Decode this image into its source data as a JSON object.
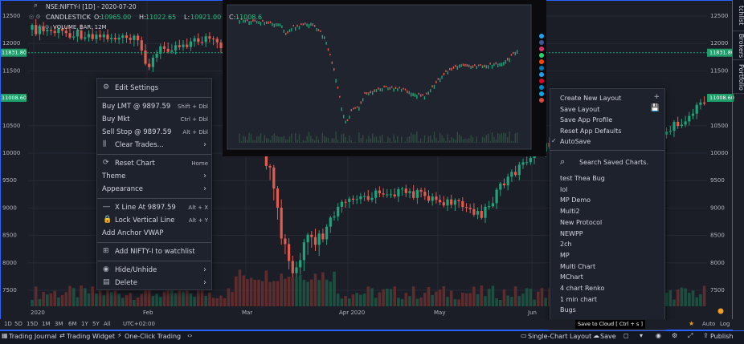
{
  "header": {
    "symbol": "NSE:NIFTY-I [1D] - 2020-07-20",
    "series_label": "CANDLESTICK",
    "ohlc": [
      {
        "label": "O:",
        "value": "10965.00"
      },
      {
        "label": "H:",
        "value": "11022.65"
      },
      {
        "label": "L:",
        "value": "10921.00"
      },
      {
        "label": "C:",
        "value": "11008.6"
      }
    ],
    "volume": "VOLUME_BAR: 12M"
  },
  "price_axis": [
    "12500",
    "12000",
    "11500",
    "10500",
    "10000",
    "9500",
    "9000",
    "8500",
    "8000",
    "7500"
  ],
  "price_badges": [
    "11831.80",
    "11008.60"
  ],
  "time_axis": [
    "2020",
    "Feb",
    "Mar",
    "Apr 2020",
    "May",
    "Jun"
  ],
  "timeframes": [
    "1D",
    "5D",
    "15D",
    "1M",
    "3M",
    "6M",
    "1Y",
    "5Y",
    "All"
  ],
  "timezone": "UTC+02:00",
  "scale_options": [
    "Auto",
    "Log"
  ],
  "toolbar_left": [
    "Trading Journal",
    "Trading Widget",
    "One-Click Trading"
  ],
  "toolbar_right": [
    "Single-Chart Layout",
    "Save",
    "Publish"
  ],
  "tooltip": "Save to Cloud [ Ctrl + s ]",
  "side_tabs": [
    "tchlist",
    "Brokers",
    "Portfolio"
  ],
  "context_menu": [
    [
      {
        "label": "Edit Settings"
      }
    ],
    [
      {
        "label": "Buy LMT @ 9897.59",
        "shortcut": "Shift + Dbl"
      },
      {
        "label": "Buy Mkt",
        "shortcut": "Ctrl + Dbl"
      },
      {
        "label": "Sell Stop @ 9897.59",
        "shortcut": "Alt + Dbl"
      },
      {
        "label": "Clear Trades..."
      }
    ],
    [
      {
        "label": "Reset Chart",
        "shortcut": "Home"
      },
      {
        "label": "Theme"
      },
      {
        "label": "Appearance"
      }
    ],
    [
      {
        "label": "X Line At 9897.59",
        "shortcut": "Alt + X"
      },
      {
        "label": "Lock Vertical Line",
        "shortcut": "Alt + Y"
      },
      {
        "label": "Add Anchor VWAP"
      }
    ],
    [
      {
        "label": "Add NIFTY-I to watchlist"
      }
    ],
    [
      {
        "label": "Hide/Unhide"
      },
      {
        "label": "Delete"
      }
    ]
  ],
  "layout_menu": {
    "actions": [
      "Create New Layout",
      "Save Layout",
      "Save App Profile",
      "Reset App Defaults",
      "AutoSave"
    ],
    "search": "Search Saved Charts.",
    "saved": [
      "test Thea Bug",
      "lol",
      "MP Demo",
      "Multi2",
      "New Protocol",
      "NEWPP",
      "2ch",
      "MP",
      "Multi Chart",
      "MChart",
      "4 chart Renko",
      "1 min chart",
      "Bugs"
    ]
  }
}
